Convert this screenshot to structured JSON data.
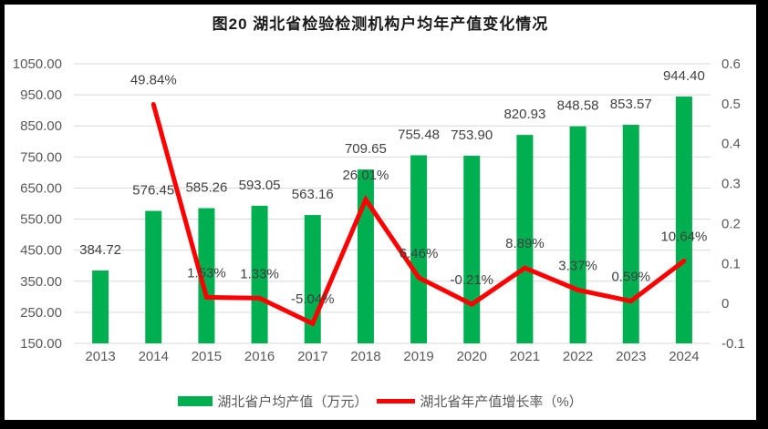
{
  "window": {
    "border_color": "#000000",
    "background": "#ffffff"
  },
  "chart_data": {
    "type": "bar",
    "subtype": "bar+line combo",
    "title": "图20 湖北省检验检测机构户均年产值变化情况",
    "categories": [
      "2013",
      "2014",
      "2015",
      "2016",
      "2017",
      "2018",
      "2019",
      "2020",
      "2021",
      "2022",
      "2023",
      "2024"
    ],
    "series": [
      {
        "name": "湖北省户均产值（万元）",
        "type": "bar",
        "axis": "left",
        "color": "#00B050",
        "values": [
          384.72,
          576.45,
          585.26,
          593.05,
          563.16,
          709.65,
          755.48,
          753.9,
          820.93,
          848.58,
          853.57,
          944.4
        ],
        "labels": [
          "384.72",
          "576.45",
          "585.26",
          "593.05",
          "563.16",
          "709.65",
          "755.48",
          "753.90",
          "820.93",
          "848.58",
          "853.57",
          "944.40"
        ]
      },
      {
        "name": "湖北省年产值增长率（%）",
        "type": "line",
        "axis": "right",
        "color": "#FF0000",
        "values": [
          null,
          0.4984,
          0.0153,
          0.0133,
          -0.0504,
          0.2601,
          0.0646,
          -0.0021,
          0.0889,
          0.0337,
          0.0059,
          0.1064
        ],
        "labels": [
          "",
          "49.84%",
          "1.53%",
          "1.33%",
          "-5.04%",
          "26.01%",
          "6.46%",
          "-0.21%",
          "8.89%",
          "3.37%",
          "0.59%",
          "10.64%"
        ]
      }
    ],
    "left_axis": {
      "min": 150,
      "max": 1050,
      "step": 100,
      "ticks": [
        "1050.00",
        "950.00",
        "850.00",
        "750.00",
        "650.00",
        "550.00",
        "450.00",
        "350.00",
        "250.00",
        "150.00"
      ]
    },
    "right_axis": {
      "min": -0.1,
      "max": 0.6,
      "step": 0.1,
      "ticks": [
        "0.6",
        "0.5",
        "0.4",
        "0.3",
        "0.2",
        "0.1",
        "0",
        "-0.1"
      ]
    },
    "grid": true,
    "legend_position": "bottom",
    "styles": {
      "gridline": "#D9D9D9",
      "axis_text": "#595959",
      "data_label_text": "#404040",
      "title_text": "#1A1A1A"
    }
  }
}
